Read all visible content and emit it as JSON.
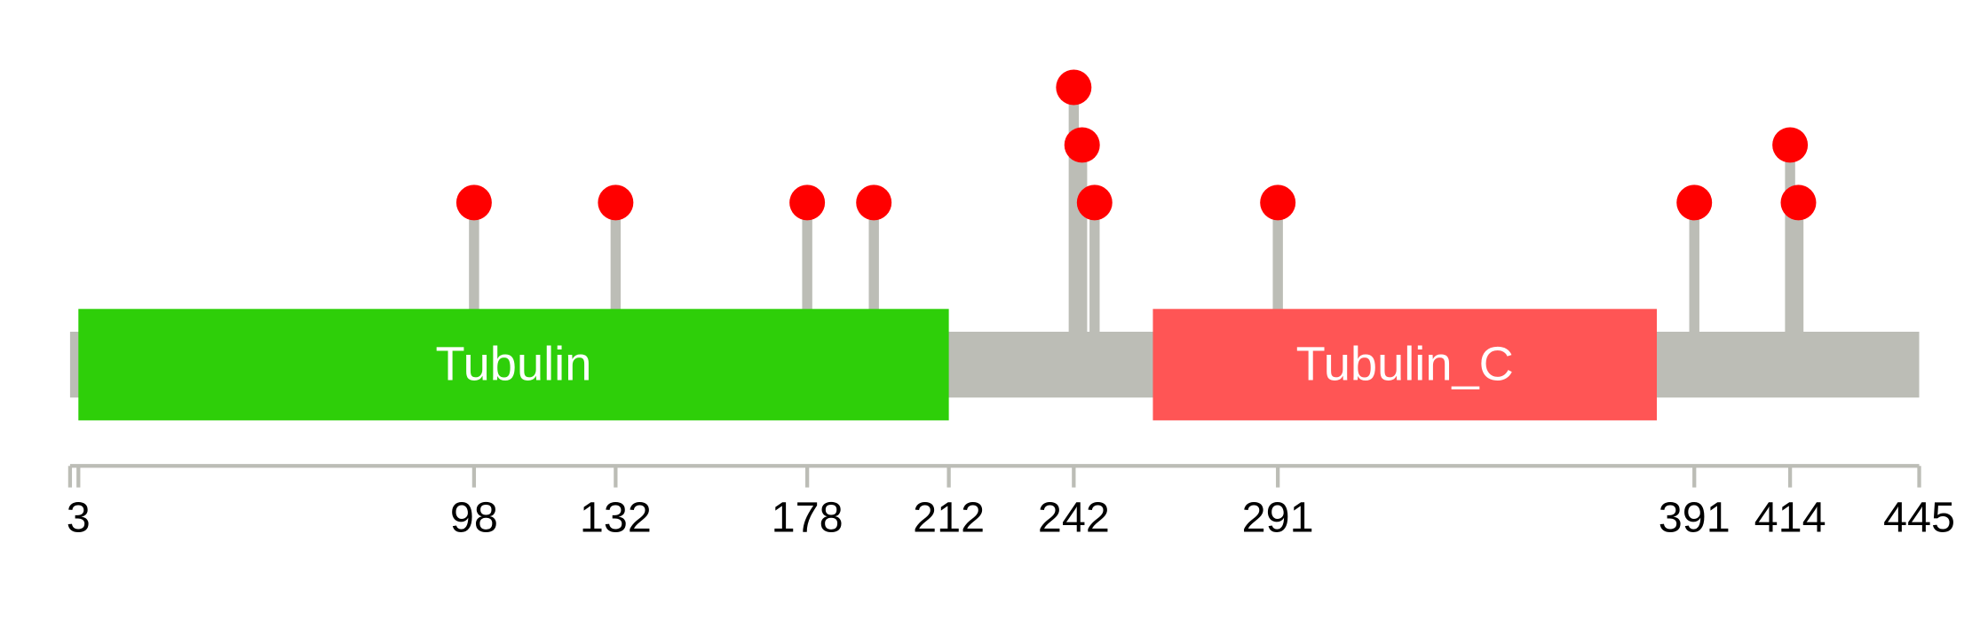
{
  "chart_data": {
    "type": "lollipop",
    "xlim": [
      1,
      445
    ],
    "xticks": [
      3,
      98,
      132,
      178,
      212,
      242,
      291,
      391,
      414,
      445
    ],
    "backbone_color": "#bcbdb6",
    "domains": [
      {
        "name": "Tubulin",
        "start": 3,
        "end": 212,
        "color": "#2ecf09"
      },
      {
        "name": "Tubulin_C",
        "start": 261,
        "end": 382,
        "color": "#ff5555"
      }
    ],
    "mutations": {
      "color": "#ff0000",
      "x": [
        98,
        132,
        178,
        194,
        242,
        244,
        247,
        291,
        391,
        414,
        416
      ],
      "values": [
        1,
        1,
        1,
        1,
        3,
        2,
        1,
        1,
        1,
        2,
        1
      ]
    }
  }
}
